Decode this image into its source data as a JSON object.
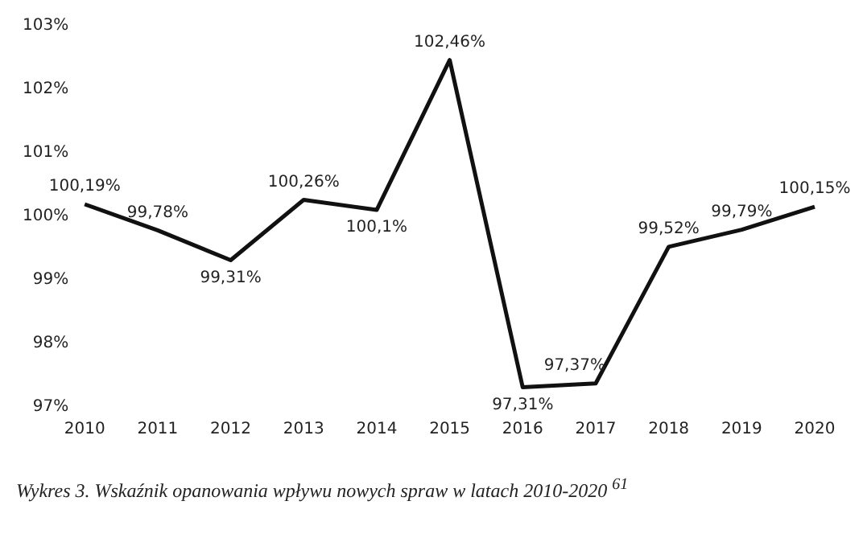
{
  "chart_data": {
    "type": "line",
    "categories": [
      "2010",
      "2011",
      "2012",
      "2013",
      "2014",
      "2015",
      "2016",
      "2017",
      "2018",
      "2019",
      "2020"
    ],
    "values": [
      100.19,
      99.78,
      99.31,
      100.26,
      100.1,
      102.46,
      97.31,
      97.37,
      99.52,
      99.79,
      100.15
    ],
    "value_labels": [
      "100,19%",
      "99,78%",
      "99,31%",
      "100,26%",
      "100,1%",
      "102,46%",
      "97,31%",
      "97,37%",
      "99,52%",
      "99,79%",
      "100,15%"
    ],
    "color": "#111111",
    "ylim": [
      97,
      103
    ],
    "yticks": [
      {
        "value": 97,
        "label": "97%"
      },
      {
        "value": 98,
        "label": "98%"
      },
      {
        "value": 99,
        "label": "99%"
      },
      {
        "value": 100,
        "label": "100%"
      },
      {
        "value": 101,
        "label": "101%"
      },
      {
        "value": 102,
        "label": "102%"
      },
      {
        "value": 103,
        "label": "103%"
      }
    ],
    "grid": false,
    "legend": false,
    "marker": "none",
    "line_style": "solid",
    "annotations": [
      "Wykres 3. Wskaźnik opanowania wpływu nowych spraw w latach 2010-2020 $^{61}$"
    ]
  }
}
